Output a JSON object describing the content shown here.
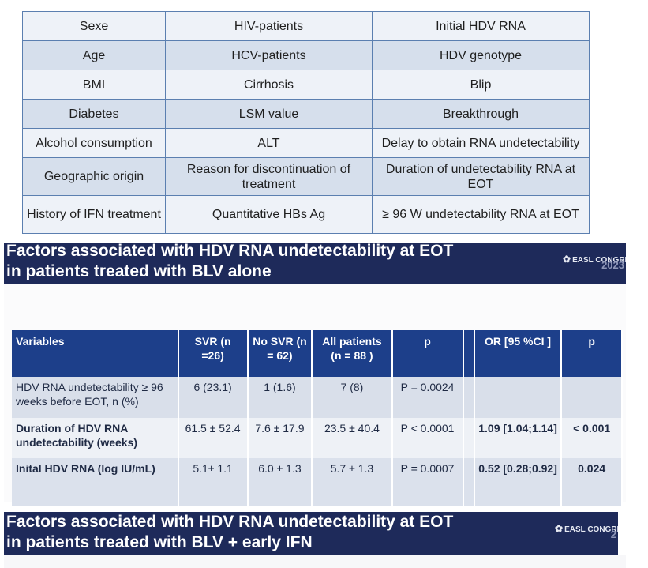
{
  "variables_table": {
    "rows": [
      [
        "Sexe",
        "HIV-patients",
        "Initial HDV RNA"
      ],
      [
        "Age",
        "HCV-patients",
        "HDV genotype"
      ],
      [
        "BMI",
        "Cirrhosis",
        "Blip"
      ],
      [
        "Diabetes",
        "LSM value",
        "Breakthrough"
      ],
      [
        "Alcohol consumption",
        "ALT",
        "Delay to obtain RNA undetectability"
      ],
      [
        "Geographic origin",
        "Reason for discontinuation of treatment",
        "Duration of undetectability RNA at EOT"
      ],
      [
        "History of IFN treatment",
        "Quantitative HBs Ag",
        "≥ 96 W undetectability RNA at EOT"
      ]
    ]
  },
  "slide1": {
    "title_line1": "Factors associated with HDV RNA undetectability at EOT",
    "title_line2": "in patients treated with BLV alone",
    "logo_text": "EASL CONGRESS",
    "logo_year": "2023"
  },
  "results_table": {
    "headers": {
      "variables": "Variables",
      "svr": "SVR (n =26)",
      "no_svr": "No SVR (n = 62)",
      "all": "All patients (n = 88 )",
      "p": "p",
      "or": "OR [95 %CI ]",
      "p2": "p"
    },
    "rows": [
      {
        "variable": "HDV RNA undetectability ≥ 96 weeks before EOT, n (%)",
        "svr": "6 (23.1)",
        "no_svr": "1 (1.6)",
        "all": "7 (8)",
        "p": "P = 0.0024",
        "or": "",
        "p2": ""
      },
      {
        "variable": "Duration of HDV RNA undetectability (weeks)",
        "svr": "61.5 ± 52.4",
        "no_svr": "7.6 ± 17.9",
        "all": "23.5 ± 40.4",
        "p": "P < 0.0001",
        "or": "1.09 [1.04;1.14]",
        "p2": "< 0.001"
      },
      {
        "variable": "Inital HDV RNA (log IU/mL)",
        "svr": "5.1± 1.1",
        "no_svr": "6.0 ± 1.3",
        "all": "5.7 ± 1.3",
        "p": "P = 0.0007",
        "or": "0.52 [0.28;0.92]",
        "p2": "0.024"
      }
    ]
  },
  "slide2": {
    "title_line1": "Factors associated with HDV RNA undetectability at EOT",
    "title_line2": "in patients treated with BLV + early IFN",
    "logo_text": "EASL CONGRESS",
    "logo_year": "2"
  }
}
